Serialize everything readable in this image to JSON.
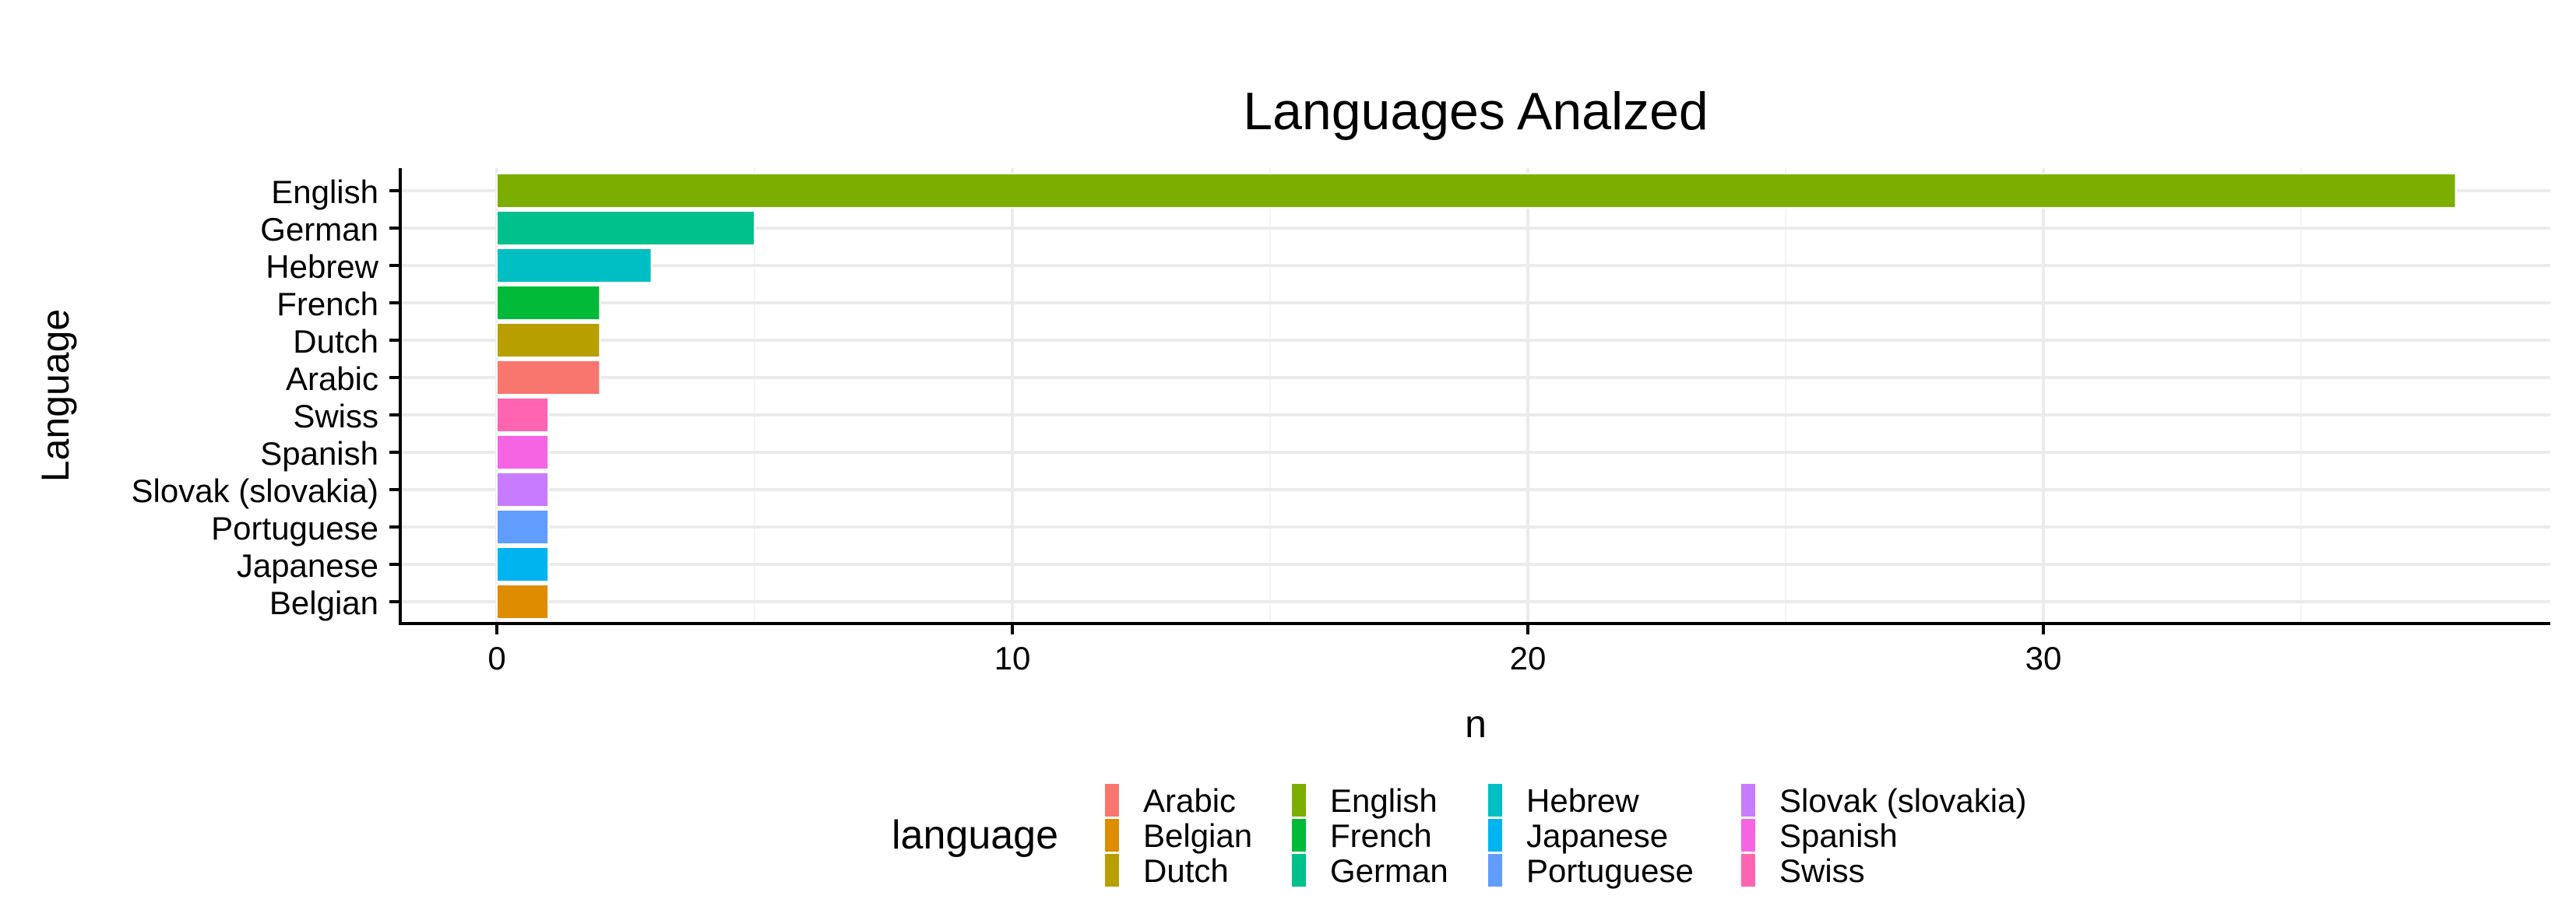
{
  "chart_data": {
    "type": "bar",
    "orientation": "horizontal",
    "title": "Languages Analzed",
    "xlabel": "n",
    "ylabel": "Language",
    "xlim": [
      -1.9,
      40
    ],
    "x_ticks": [
      0,
      10,
      20,
      30
    ],
    "grid": true,
    "legend_title": "language",
    "legend_position": "bottom",
    "categories": [
      "English",
      "German",
      "Hebrew",
      "French",
      "Dutch",
      "Arabic",
      "Swiss",
      "Spanish",
      "Slovak (slovakia)",
      "Portuguese",
      "Japanese",
      "Belgian"
    ],
    "values": [
      38,
      5,
      3,
      2,
      2,
      2,
      1,
      1,
      1,
      1,
      1,
      1
    ],
    "colors": {
      "Arabic": "#F8766D",
      "Belgian": "#DE8C00",
      "Dutch": "#B79F00",
      "English": "#7CAE00",
      "French": "#00BA38",
      "German": "#00C08B",
      "Hebrew": "#00BFC4",
      "Japanese": "#00B4F0",
      "Portuguese": "#619CFF",
      "Slovak (slovakia)": "#C77CFF",
      "Spanish": "#F564E3",
      "Swiss": "#FF64B0"
    },
    "legend_columns": [
      [
        "Arabic",
        "Belgian",
        "Dutch"
      ],
      [
        "English",
        "French",
        "German"
      ],
      [
        "Hebrew",
        "Japanese",
        "Portuguese"
      ],
      [
        "Slovak (slovakia)",
        "Spanish",
        "Swiss"
      ]
    ]
  }
}
